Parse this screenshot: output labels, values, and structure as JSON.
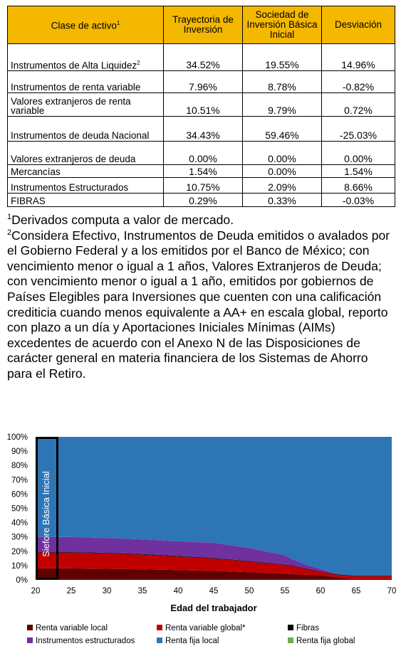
{
  "table": {
    "headers": [
      "Clase de activo",
      "Trayectoria de Inversión",
      "Sociedad de Inversión Básica Inicial",
      "Desviación"
    ],
    "header_sup": "1",
    "rows": [
      {
        "asset": "Instrumentos de Alta Liquidez",
        "sup": "2",
        "trayectoria": "34.52%",
        "basica": "19.55%",
        "desviacion": "14.96%"
      },
      {
        "asset": "Instrumentos de renta variable",
        "trayectoria": "7.96%",
        "basica": "8.78%",
        "desviacion": "-0.82%"
      },
      {
        "asset": "Valores extranjeros de renta variable",
        "trayectoria": "10.51%",
        "basica": "9.79%",
        "desviacion": "0.72%"
      },
      {
        "asset": "Instrumentos de deuda Nacional",
        "trayectoria": "34.43%",
        "basica": "59.46%",
        "desviacion": "-25.03%"
      },
      {
        "asset": "Valores extranjeros de deuda",
        "trayectoria": "0.00%",
        "basica": "0.00%",
        "desviacion": "0.00%"
      },
      {
        "asset": "Mercancías",
        "trayectoria": "1.54%",
        "basica": "0.00%",
        "desviacion": "1.54%"
      },
      {
        "asset": "Instrumentos Estructurados",
        "trayectoria": "10.75%",
        "basica": "2.09%",
        "desviacion": "8.66%"
      },
      {
        "asset": "FIBRAS",
        "trayectoria": "0.29%",
        "basica": "0.33%",
        "desviacion": "-0.03%"
      }
    ]
  },
  "notes": {
    "n1_mark": "1",
    "n1": "Derivados computa a valor de mercado.",
    "n2_mark": "2",
    "n2": "Considera Efectivo, Instrumentos de Deuda emitidos o avalados por el Gobierno Federal y a los emitidos por el Banco de México; con vencimiento menor o igual a 1 años, Valores Extranjeros de Deuda; con vencimiento menor o igual a 1 año, emitidos por gobiernos de Países Elegibles para Inversiones que cuenten con una calificación crediticia cuando menos equivalente a AA+ en escala global, reporto con plazo a un día y Aportaciones Iniciales Mínimas (AIMs) excedentes de acuerdo con el Anexo N de las Disposiciones de carácter general en materia financiera de los Sistemas de Ahorro para el Retiro."
  },
  "chart_data": {
    "type": "area",
    "xlabel": "Edad del trabajador",
    "ylabel": "",
    "xlim": [
      20,
      70
    ],
    "ylim": [
      0,
      100
    ],
    "x_ticks": [
      20,
      25,
      30,
      35,
      40,
      45,
      50,
      55,
      60,
      65,
      70
    ],
    "y_ticks": [
      "0%",
      "10%",
      "20%",
      "30%",
      "40%",
      "50%",
      "60%",
      "70%",
      "80%",
      "90%",
      "100%"
    ],
    "y_tick_values": [
      0,
      10,
      20,
      30,
      40,
      50,
      60,
      70,
      80,
      90,
      100
    ],
    "x": [
      20,
      23,
      25,
      30,
      35,
      40,
      45,
      50,
      55,
      56,
      58,
      60,
      62,
      63,
      65,
      70
    ],
    "series": [
      {
        "name": "Renta variable local",
        "color": "#600000",
        "values": [
          8,
          8,
          8,
          7.7,
          7.3,
          6.8,
          6.2,
          5.3,
          4.3,
          4.0,
          3.6,
          3.3,
          2.0,
          1.3,
          0.5,
          0.5
        ]
      },
      {
        "name": "Renta variable global*",
        "color": "#c00000",
        "values": [
          11,
          11,
          11,
          10.8,
          10.3,
          9.5,
          8.7,
          7.5,
          6.0,
          5.6,
          3.8,
          2.4,
          1.7,
          2.0,
          2.0,
          2.0
        ]
      },
      {
        "name": "Fibras",
        "color": "#000000",
        "values": [
          0.4,
          0.4,
          0.4,
          0.4,
          0.4,
          0.4,
          0.4,
          0.4,
          0.4,
          0.4,
          0.4,
          0.4,
          0.4,
          0.4,
          0.4,
          0.4
        ]
      },
      {
        "name": "Instrumentos estructurados",
        "color": "#7030a0",
        "values": [
          10.6,
          10.6,
          10.6,
          10.3,
          10.2,
          10.3,
          10.6,
          9.0,
          6.5,
          4.6,
          2.8,
          1.5,
          0.5,
          0,
          0,
          0
        ]
      },
      {
        "name": "Renta fija local",
        "color": "#2e75b6",
        "values": [
          70,
          70,
          70,
          70.8,
          71.8,
          73,
          74.1,
          77.8,
          82.8,
          85.4,
          89.4,
          92.4,
          95.4,
          96.3,
          97.1,
          97.1
        ]
      },
      {
        "name": "Renta fija global",
        "color": "#70ad47",
        "values": [
          0,
          0,
          0,
          0,
          0,
          0,
          0,
          0,
          0,
          0,
          0,
          0,
          0,
          0,
          0,
          0
        ]
      }
    ],
    "annotation": {
      "label": "Siefore Básica Inicial",
      "x_range": [
        20,
        23
      ]
    },
    "grid": false,
    "legend_position": "bottom"
  }
}
